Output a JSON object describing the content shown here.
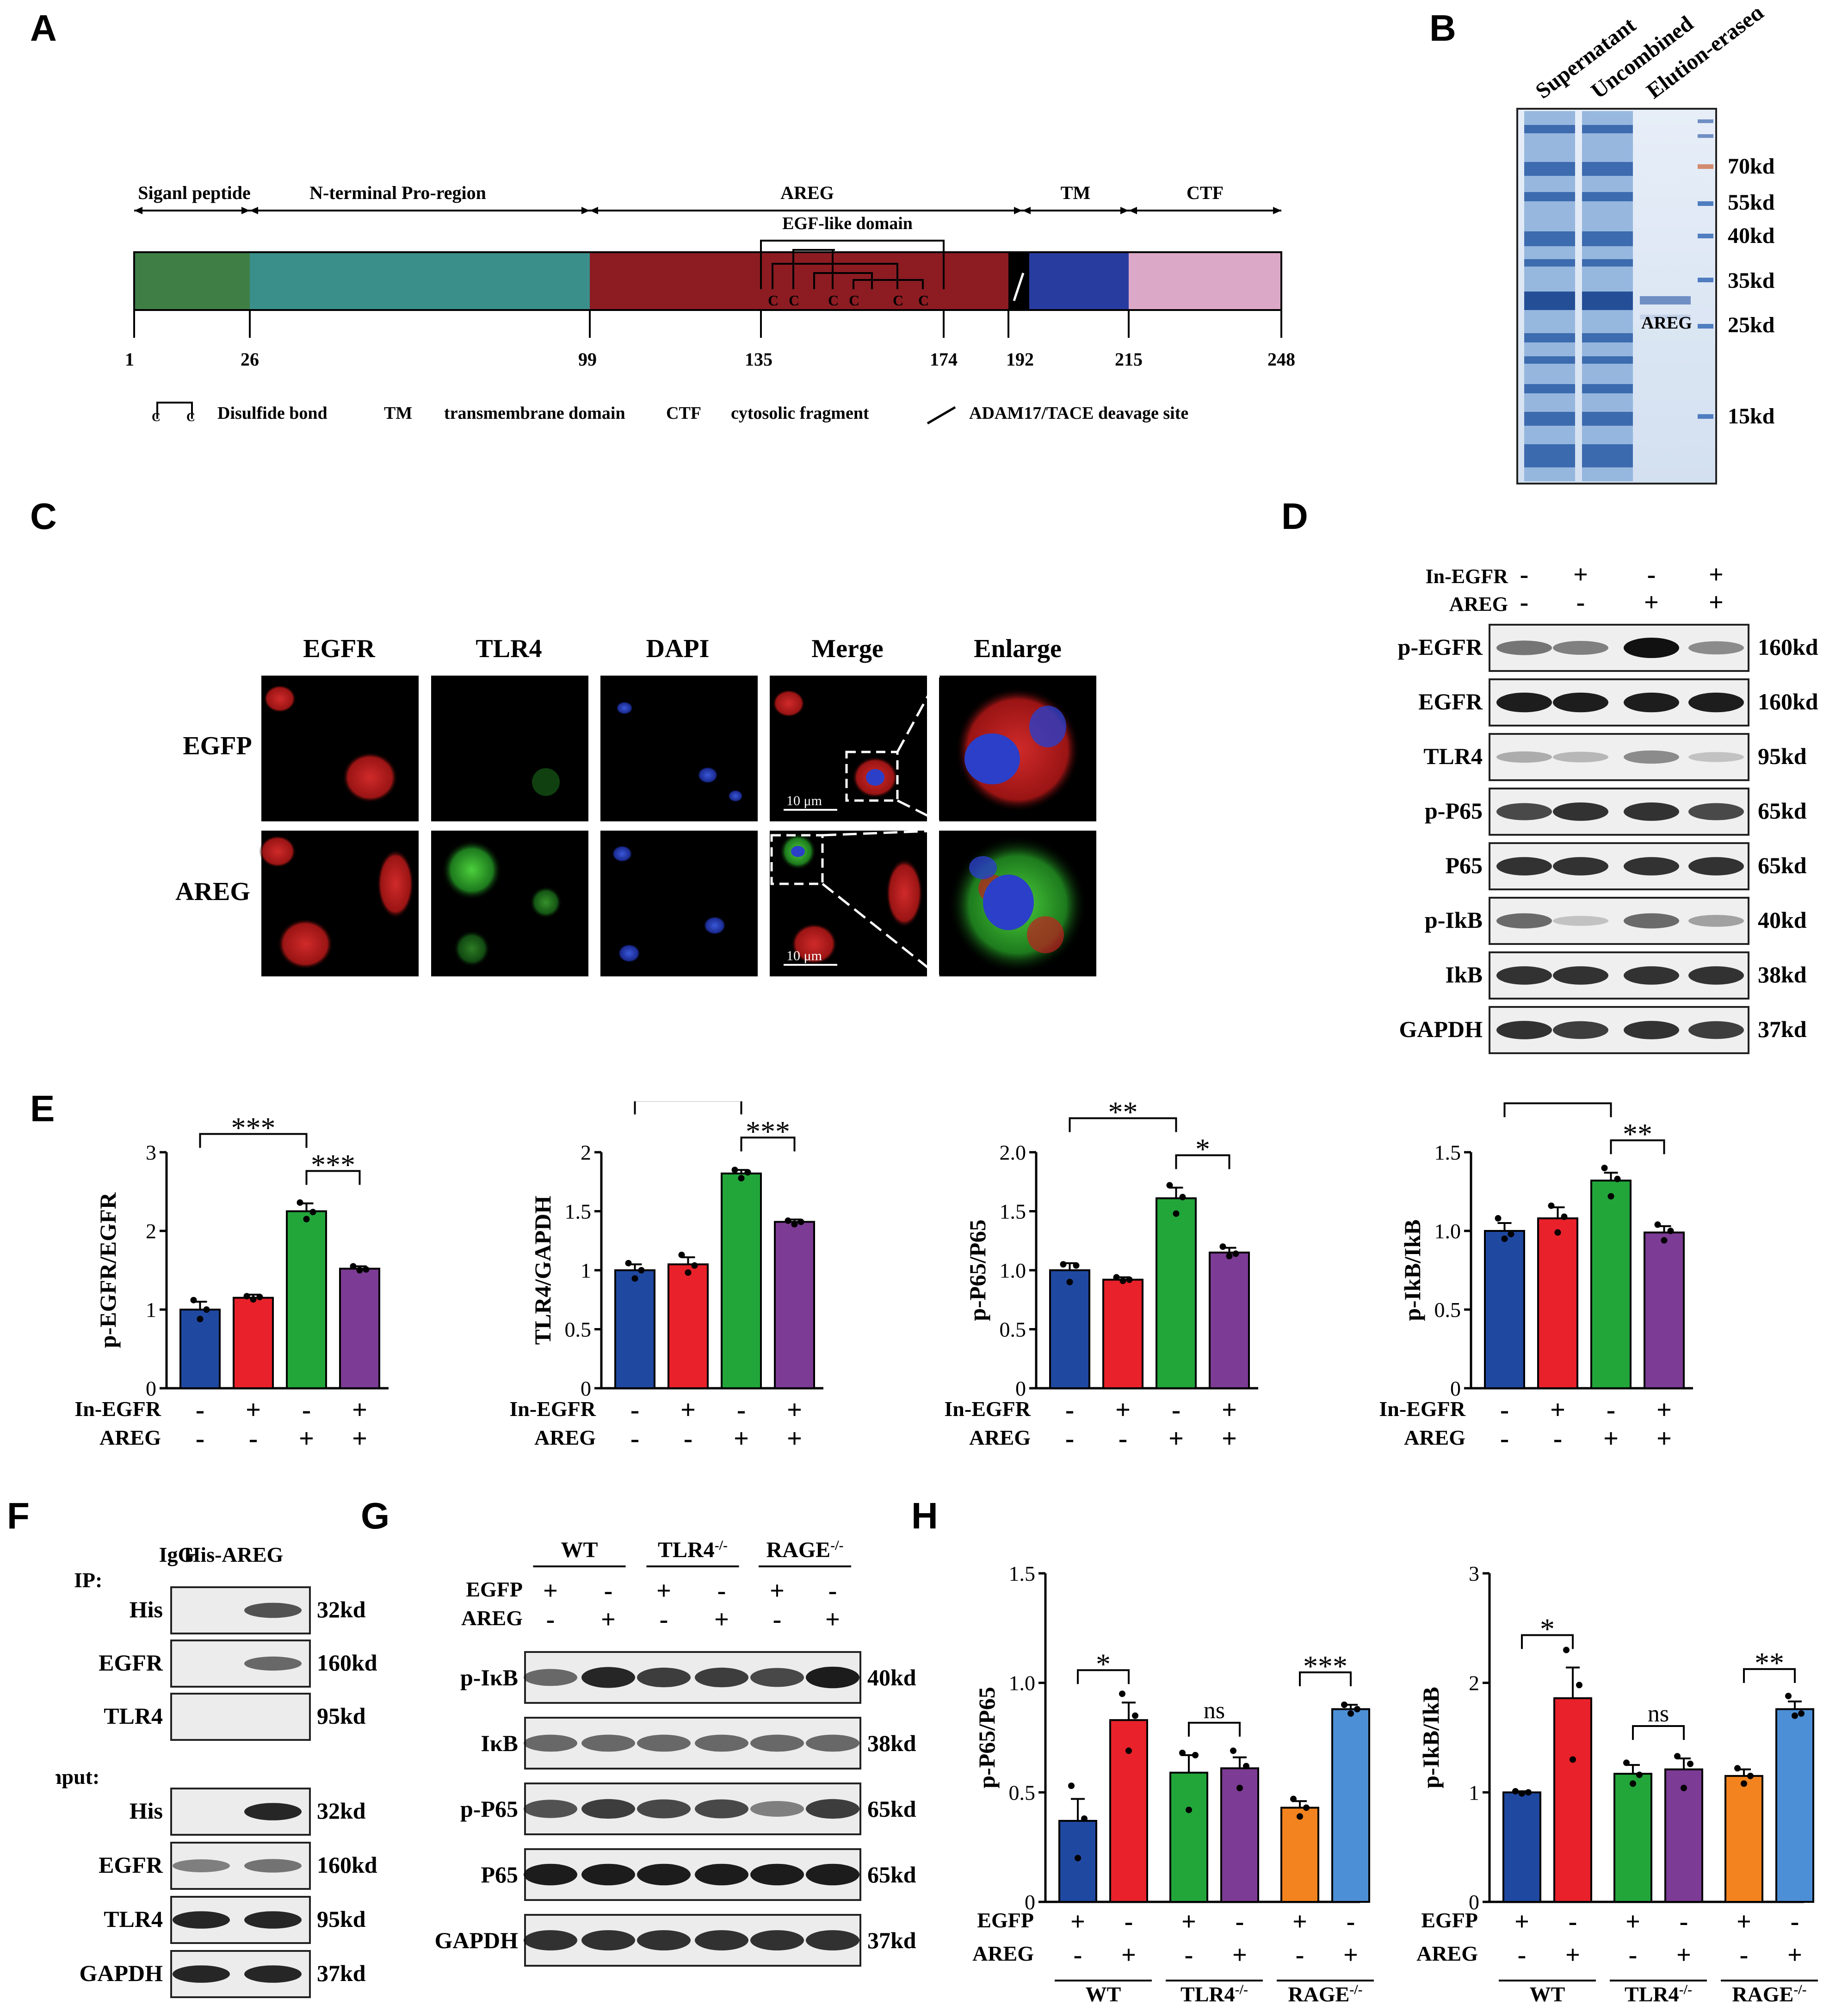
{
  "panelA": {
    "letter": "A",
    "regions": [
      {
        "label": "Siganl peptide",
        "color": "#3f7f45"
      },
      {
        "label": "N-terminal Pro-region",
        "color": "#3a8f8a"
      },
      {
        "label": "AREG",
        "color": "#8c1c22"
      },
      {
        "label": "TM",
        "color": "#283ca0"
      },
      {
        "label": "CTF",
        "color": "#dca8c8"
      }
    ],
    "egf_label": "EGF-like domain",
    "positions": [
      "1",
      "26",
      "99",
      "135",
      "174",
      "192",
      "215",
      "248"
    ],
    "cys": [
      "C",
      "C",
      "C",
      "C",
      "C",
      "C"
    ],
    "legend": {
      "disulfide": "Disulfide bond",
      "tm_abbr": "TM",
      "tm_full": "transmembrane domain",
      "ctf_abbr": "CTF",
      "ctf_full": "cytosolic fragment",
      "cleave": "ADAM17/TACE deavage site",
      "c": "C"
    }
  },
  "panelB": {
    "letter": "B",
    "lanes": [
      "Supernatant",
      "Uncombined",
      "Elution-erased"
    ],
    "band_label": "AREG",
    "markers": [
      "70kd",
      "55kd",
      "40kd",
      "35kd",
      "25kd",
      "15kd"
    ]
  },
  "panelC": {
    "letter": "C",
    "columns": [
      "EGFR",
      "TLR4",
      "DAPI",
      "Merge",
      "Enlarge"
    ],
    "rows": [
      "EGFP",
      "AREG"
    ],
    "scale": "10 μm"
  },
  "panelD": {
    "letter": "D",
    "conditions": [
      {
        "name": "In-EGFR",
        "signs": [
          "-",
          "+",
          "-",
          "+"
        ]
      },
      {
        "name": "AREG",
        "signs": [
          "-",
          "-",
          "+",
          "+"
        ]
      }
    ],
    "blots": [
      {
        "name": "p-EGFR",
        "size": "160kd"
      },
      {
        "name": "EGFR",
        "size": "160kd"
      },
      {
        "name": "TLR4",
        "size": "95kd"
      },
      {
        "name": "p-P65",
        "size": "65kd"
      },
      {
        "name": "P65",
        "size": "65kd"
      },
      {
        "name": "p-IkB",
        "size": "40kd"
      },
      {
        "name": "IkB",
        "size": "38kd"
      },
      {
        "name": "GAPDH",
        "size": "37kd"
      }
    ]
  },
  "panelE": {
    "letter": "E",
    "conditions": [
      {
        "name": "In-EGFR",
        "signs": [
          "-",
          "+",
          "-",
          "+"
        ]
      },
      {
        "name": "AREG",
        "signs": [
          "-",
          "-",
          "+",
          "+"
        ]
      }
    ],
    "colors": [
      "#1f48a0",
      "#e8212a",
      "#22a63a",
      "#7c3b94"
    ]
  },
  "panelF": {
    "letter": "F",
    "lanes": [
      "IgG",
      "His-AREG"
    ],
    "ip_label": "IP:",
    "input_label": "Input:",
    "ip_blots": [
      {
        "name": "His",
        "size": "32kd"
      },
      {
        "name": "EGFR",
        "size": "160kd"
      },
      {
        "name": "TLR4",
        "size": "95kd"
      }
    ],
    "input_blots": [
      {
        "name": "His",
        "size": "32kd"
      },
      {
        "name": "EGFR",
        "size": "160kd"
      },
      {
        "name": "TLR4",
        "size": "95kd"
      },
      {
        "name": "GAPDH",
        "size": "37kd"
      }
    ]
  },
  "panelG": {
    "letter": "G",
    "groups": [
      "WT",
      "TLR4",
      "RAGE"
    ],
    "group_sup": "-/-",
    "conditions": [
      {
        "name": "EGFP",
        "signs": [
          "+",
          "-",
          "+",
          "-",
          "+",
          "-"
        ]
      },
      {
        "name": "AREG",
        "signs": [
          "-",
          "+",
          "-",
          "+",
          "-",
          "+"
        ]
      }
    ],
    "blots": [
      {
        "name": "p-IκB",
        "size": "40kd"
      },
      {
        "name": "IκB",
        "size": "38kd"
      },
      {
        "name": "p-P65",
        "size": "65kd"
      },
      {
        "name": "P65",
        "size": "65kd"
      },
      {
        "name": "GAPDH",
        "size": "37kd"
      }
    ]
  },
  "panelH": {
    "letter": "H",
    "groups": [
      "WT",
      "TLR4",
      "RAGE"
    ],
    "group_sup": "-/-",
    "conditions": [
      {
        "name": "EGFP",
        "signs": [
          "+",
          "-",
          "+",
          "-",
          "+",
          "-"
        ]
      },
      {
        "name": "AREG",
        "signs": [
          "-",
          "+",
          "-",
          "+",
          "-",
          "+"
        ]
      }
    ],
    "colors": [
      "#1f48a0",
      "#e8212a",
      "#22a63a",
      "#7c3b94",
      "#f2831e",
      "#4c8fd6"
    ]
  },
  "chart_data": [
    {
      "type": "bar",
      "panel": "E",
      "ylabel": "p-EGFR/EGFR",
      "ylim": [
        0,
        3
      ],
      "yticks": [
        "0",
        "1",
        "2",
        "3"
      ],
      "values": [
        1.0,
        1.15,
        2.25,
        1.52
      ],
      "errors": [
        0.1,
        0.04,
        0.1,
        0.03
      ],
      "points": [
        [
          1.12,
          0.88,
          1.0
        ],
        [
          1.17,
          1.13,
          1.16
        ],
        [
          2.36,
          2.15,
          2.24
        ],
        [
          1.55,
          1.5,
          1.51
        ]
      ],
      "sig": [
        {
          "from": 0,
          "to": 2,
          "label": "***"
        },
        {
          "from": 2,
          "to": 3,
          "label": "***"
        }
      ]
    },
    {
      "type": "bar",
      "panel": "E",
      "ylabel": "TLR4/GAPDH",
      "ylim": [
        0,
        2
      ],
      "yticks": [
        "0",
        "0.5",
        "1",
        "1.5",
        "2"
      ],
      "values": [
        1.0,
        1.05,
        1.82,
        1.41
      ],
      "errors": [
        0.05,
        0.06,
        0.03,
        0.02
      ],
      "points": [
        [
          1.06,
          0.93,
          1.0
        ],
        [
          1.13,
          0.98,
          1.04
        ],
        [
          1.85,
          1.78,
          1.83
        ],
        [
          1.42,
          1.39,
          1.41
        ]
      ],
      "sig": [
        {
          "from": 0,
          "to": 2,
          "label": "***"
        },
        {
          "from": 2,
          "to": 3,
          "label": "***"
        }
      ]
    },
    {
      "type": "bar",
      "panel": "E",
      "ylabel": "p-P65/P65",
      "ylim": [
        0,
        2.0
      ],
      "yticks": [
        "0",
        "0.5",
        "1.0",
        "1.5",
        "2.0"
      ],
      "values": [
        1.0,
        0.92,
        1.61,
        1.15
      ],
      "errors": [
        0.06,
        0.02,
        0.09,
        0.04
      ],
      "points": [
        [
          1.05,
          0.9,
          1.04
        ],
        [
          0.94,
          0.91,
          0.92
        ],
        [
          1.72,
          1.48,
          1.62
        ],
        [
          1.2,
          1.12,
          1.14
        ]
      ],
      "sig": [
        {
          "from": 0,
          "to": 2,
          "label": "**"
        },
        {
          "from": 2,
          "to": 3,
          "label": "*"
        }
      ]
    },
    {
      "type": "bar",
      "panel": "E",
      "ylabel": "p-IkB/IkB",
      "ylim": [
        0,
        1.5
      ],
      "yticks": [
        "0",
        "0.5",
        "1.0",
        "1.5"
      ],
      "values": [
        1.0,
        1.08,
        1.32,
        0.99
      ],
      "errors": [
        0.05,
        0.07,
        0.05,
        0.04
      ],
      "points": [
        [
          1.08,
          0.95,
          0.98
        ],
        [
          1.16,
          0.99,
          1.09
        ],
        [
          1.4,
          1.22,
          1.33
        ],
        [
          1.04,
          0.94,
          1.0
        ]
      ],
      "sig": [
        {
          "from": 0,
          "to": 2,
          "label": "*"
        },
        {
          "from": 2,
          "to": 3,
          "label": "**"
        }
      ]
    },
    {
      "type": "bar",
      "panel": "H",
      "ylabel": "p-P65/P65",
      "ylim": [
        0,
        1.5
      ],
      "yticks": [
        "0",
        "0.5",
        "1.0",
        "1.5"
      ],
      "values": [
        0.37,
        0.83,
        0.59,
        0.61,
        0.43,
        0.88
      ],
      "errors": [
        0.1,
        0.08,
        0.08,
        0.05,
        0.03,
        0.02
      ],
      "points": [
        [
          0.53,
          0.2,
          0.38
        ],
        [
          0.95,
          0.69,
          0.85
        ],
        [
          0.68,
          0.42,
          0.67
        ],
        [
          0.69,
          0.52,
          0.62
        ],
        [
          0.47,
          0.39,
          0.43
        ],
        [
          0.9,
          0.86,
          0.88
        ]
      ],
      "sig": [
        {
          "from": 0,
          "to": 1,
          "label": "*"
        },
        {
          "from": 2,
          "to": 3,
          "label": "ns"
        },
        {
          "from": 4,
          "to": 5,
          "label": "***"
        }
      ]
    },
    {
      "type": "bar",
      "panel": "H",
      "ylabel": "p-IkB/IkB",
      "ylim": [
        0,
        3
      ],
      "yticks": [
        "0",
        "1",
        "2",
        "3"
      ],
      "values": [
        1.0,
        1.86,
        1.17,
        1.21,
        1.15,
        1.76
      ],
      "errors": [
        0.01,
        0.28,
        0.08,
        0.1,
        0.06,
        0.07
      ],
      "points": [
        [
          1.01,
          0.99,
          1.0
        ],
        [
          2.3,
          1.3,
          1.98
        ],
        [
          1.27,
          1.08,
          1.16
        ],
        [
          1.33,
          1.04,
          1.26
        ],
        [
          1.22,
          1.08,
          1.15
        ],
        [
          1.88,
          1.7,
          1.72
        ]
      ],
      "sig": [
        {
          "from": 0,
          "to": 1,
          "label": "*"
        },
        {
          "from": 2,
          "to": 3,
          "label": "ns"
        },
        {
          "from": 4,
          "to": 5,
          "label": "**"
        }
      ]
    }
  ]
}
